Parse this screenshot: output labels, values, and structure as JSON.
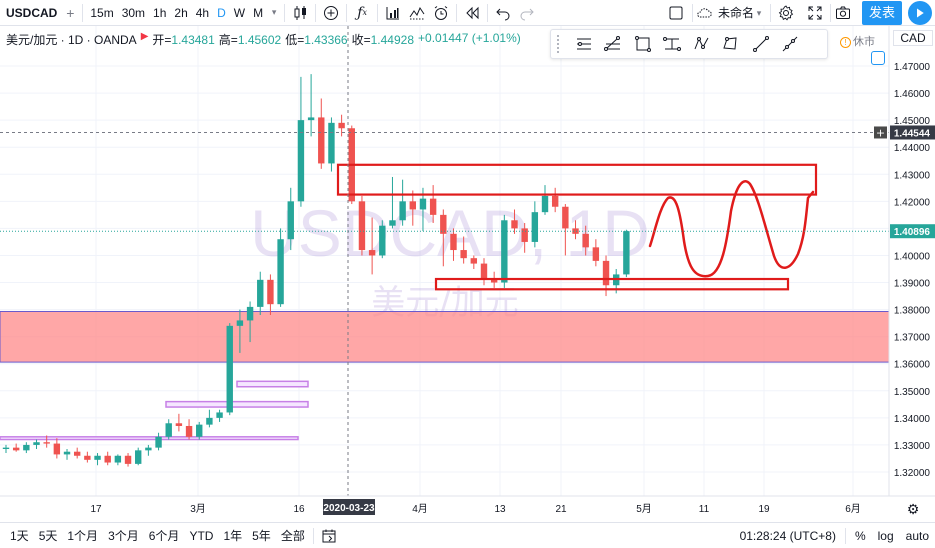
{
  "toolbar": {
    "symbol": "USDCAD",
    "intervals": [
      "15m",
      "30m",
      "1h",
      "2h",
      "4h",
      "D",
      "W",
      "M"
    ],
    "active_interval": "D",
    "layout_name": "未命名",
    "publish": "发表"
  },
  "legend": {
    "title": "美元/加元 · 1D · OANDA",
    "open_label": "开=",
    "open": "1.43481",
    "high_label": "高=",
    "high": "1.45602",
    "low_label": "低=",
    "low": "1.43366",
    "close_label": "收=",
    "close": "1.44928",
    "change": "+0.01447 (+1.01%)"
  },
  "market_status": "休市",
  "currency": "CAD",
  "watermark": {
    "symbol": "USDCAD, 1D",
    "name": "美元/加元"
  },
  "colors": {
    "up": "#26a69a",
    "down": "#ef5350",
    "accent": "#2196f3",
    "zone": "#ff8a8a",
    "drawing": "#e01b1b",
    "box": "#c780e6"
  },
  "chart_data": {
    "type": "candlestick",
    "symbol": "USDCAD",
    "timeframe": "1D",
    "ylim": [
      1.314,
      1.477
    ],
    "y_ticks": [
      "1.47000",
      "1.46000",
      "1.45000",
      "1.44000",
      "1.43000",
      "1.42000",
      "1.41000",
      "1.40000",
      "1.39000",
      "1.38000",
      "1.37000",
      "1.36000",
      "1.35000",
      "1.34000",
      "1.33000",
      "1.32000"
    ],
    "x_ticks": [
      "17",
      "3月",
      "16",
      "2020-03-23",
      "4月",
      "13",
      "21",
      "5月",
      "11",
      "19",
      "6月"
    ],
    "last_price_label": "1.40896",
    "crosshair_price_label": "1.44544",
    "crosshair_date_label": "2020-03-23",
    "candles": [
      {
        "o": 1.3285,
        "h": 1.33,
        "l": 1.327,
        "c": 1.329
      },
      {
        "o": 1.329,
        "h": 1.3305,
        "l": 1.3275,
        "c": 1.328
      },
      {
        "o": 1.328,
        "h": 1.331,
        "l": 1.327,
        "c": 1.33
      },
      {
        "o": 1.33,
        "h": 1.332,
        "l": 1.3285,
        "c": 1.331
      },
      {
        "o": 1.331,
        "h": 1.3335,
        "l": 1.329,
        "c": 1.3305
      },
      {
        "o": 1.3305,
        "h": 1.3325,
        "l": 1.325,
        "c": 1.3265
      },
      {
        "o": 1.3265,
        "h": 1.3285,
        "l": 1.3245,
        "c": 1.3275
      },
      {
        "o": 1.3275,
        "h": 1.329,
        "l": 1.325,
        "c": 1.326
      },
      {
        "o": 1.326,
        "h": 1.3275,
        "l": 1.3235,
        "c": 1.3245
      },
      {
        "o": 1.3245,
        "h": 1.327,
        "l": 1.3225,
        "c": 1.326
      },
      {
        "o": 1.326,
        "h": 1.3275,
        "l": 1.3225,
        "c": 1.3235
      },
      {
        "o": 1.3235,
        "h": 1.3265,
        "l": 1.3225,
        "c": 1.326
      },
      {
        "o": 1.326,
        "h": 1.327,
        "l": 1.322,
        "c": 1.323
      },
      {
        "o": 1.323,
        "h": 1.329,
        "l": 1.3225,
        "c": 1.328
      },
      {
        "o": 1.328,
        "h": 1.33,
        "l": 1.326,
        "c": 1.329
      },
      {
        "o": 1.329,
        "h": 1.3345,
        "l": 1.328,
        "c": 1.333
      },
      {
        "o": 1.333,
        "h": 1.3395,
        "l": 1.332,
        "c": 1.338
      },
      {
        "o": 1.338,
        "h": 1.3415,
        "l": 1.335,
        "c": 1.337
      },
      {
        "o": 1.337,
        "h": 1.3395,
        "l": 1.332,
        "c": 1.333
      },
      {
        "o": 1.333,
        "h": 1.3385,
        "l": 1.332,
        "c": 1.3375
      },
      {
        "o": 1.3375,
        "h": 1.343,
        "l": 1.3365,
        "c": 1.34
      },
      {
        "o": 1.34,
        "h": 1.343,
        "l": 1.3385,
        "c": 1.342
      },
      {
        "o": 1.342,
        "h": 1.375,
        "l": 1.341,
        "c": 1.374
      },
      {
        "o": 1.374,
        "h": 1.38,
        "l": 1.364,
        "c": 1.376
      },
      {
        "o": 1.376,
        "h": 1.383,
        "l": 1.368,
        "c": 1.381
      },
      {
        "o": 1.381,
        "h": 1.394,
        "l": 1.378,
        "c": 1.391
      },
      {
        "o": 1.391,
        "h": 1.393,
        "l": 1.378,
        "c": 1.382
      },
      {
        "o": 1.382,
        "h": 1.41,
        "l": 1.381,
        "c": 1.406
      },
      {
        "o": 1.406,
        "h": 1.425,
        "l": 1.402,
        "c": 1.42
      },
      {
        "o": 1.42,
        "h": 1.466,
        "l": 1.418,
        "c": 1.45
      },
      {
        "o": 1.45,
        "h": 1.467,
        "l": 1.444,
        "c": 1.451
      },
      {
        "o": 1.451,
        "h": 1.458,
        "l": 1.432,
        "c": 1.434
      },
      {
        "o": 1.434,
        "h": 1.451,
        "l": 1.431,
        "c": 1.449
      },
      {
        "o": 1.449,
        "h": 1.452,
        "l": 1.444,
        "c": 1.447
      },
      {
        "o": 1.447,
        "h": 1.448,
        "l": 1.419,
        "c": 1.42
      },
      {
        "o": 1.42,
        "h": 1.422,
        "l": 1.4,
        "c": 1.402
      },
      {
        "o": 1.402,
        "h": 1.414,
        "l": 1.393,
        "c": 1.4
      },
      {
        "o": 1.4,
        "h": 1.413,
        "l": 1.399,
        "c": 1.411
      },
      {
        "o": 1.411,
        "h": 1.429,
        "l": 1.41,
        "c": 1.413
      },
      {
        "o": 1.413,
        "h": 1.428,
        "l": 1.411,
        "c": 1.42
      },
      {
        "o": 1.42,
        "h": 1.424,
        "l": 1.411,
        "c": 1.417
      },
      {
        "o": 1.417,
        "h": 1.425,
        "l": 1.409,
        "c": 1.421
      },
      {
        "o": 1.421,
        "h": 1.426,
        "l": 1.412,
        "c": 1.415
      },
      {
        "o": 1.415,
        "h": 1.417,
        "l": 1.396,
        "c": 1.408
      },
      {
        "o": 1.408,
        "h": 1.41,
        "l": 1.398,
        "c": 1.402
      },
      {
        "o": 1.402,
        "h": 1.407,
        "l": 1.397,
        "c": 1.399
      },
      {
        "o": 1.399,
        "h": 1.4,
        "l": 1.395,
        "c": 1.397
      },
      {
        "o": 1.397,
        "h": 1.399,
        "l": 1.389,
        "c": 1.391
      },
      {
        "o": 1.391,
        "h": 1.394,
        "l": 1.388,
        "c": 1.39
      },
      {
        "o": 1.39,
        "h": 1.415,
        "l": 1.388,
        "c": 1.413
      },
      {
        "o": 1.413,
        "h": 1.417,
        "l": 1.408,
        "c": 1.41
      },
      {
        "o": 1.41,
        "h": 1.412,
        "l": 1.401,
        "c": 1.405
      },
      {
        "o": 1.405,
        "h": 1.42,
        "l": 1.403,
        "c": 1.416
      },
      {
        "o": 1.416,
        "h": 1.426,
        "l": 1.415,
        "c": 1.422
      },
      {
        "o": 1.422,
        "h": 1.425,
        "l": 1.416,
        "c": 1.418
      },
      {
        "o": 1.418,
        "h": 1.419,
        "l": 1.4,
        "c": 1.41
      },
      {
        "o": 1.41,
        "h": 1.413,
        "l": 1.406,
        "c": 1.408
      },
      {
        "o": 1.408,
        "h": 1.411,
        "l": 1.4,
        "c": 1.403
      },
      {
        "o": 1.403,
        "h": 1.406,
        "l": 1.396,
        "c": 1.398
      },
      {
        "o": 1.398,
        "h": 1.4,
        "l": 1.385,
        "c": 1.389
      },
      {
        "o": 1.389,
        "h": 1.395,
        "l": 1.386,
        "c": 1.393
      },
      {
        "o": 1.393,
        "h": 1.4095,
        "l": 1.392,
        "c": 1.409
      }
    ]
  },
  "bottom": {
    "ranges": [
      "1天",
      "5天",
      "1个月",
      "3个月",
      "6个月",
      "YTD",
      "1年",
      "5年",
      "全部"
    ],
    "time": "01:28:24 (UTC+8)",
    "percent": "%",
    "log": "log",
    "auto": "auto"
  }
}
